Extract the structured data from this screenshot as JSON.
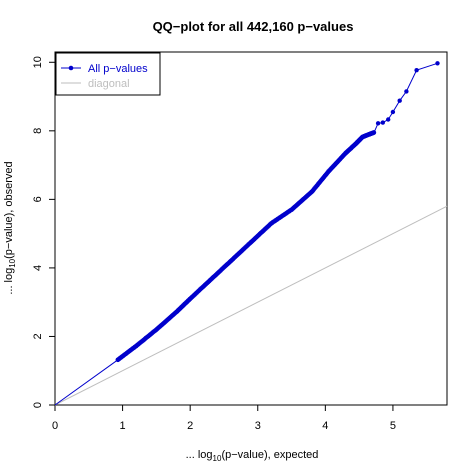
{
  "chart_data": {
    "type": "scatter",
    "title": "QQ−plot for all 442,160 p−values",
    "xlabel": {
      "prefix": "... log",
      "sub": "10",
      "suffix": "(p−value), expected"
    },
    "ylabel": {
      "prefix": "... log",
      "sub": "10",
      "suffix": "(p−value), observed"
    },
    "xlim": [
      0,
      5.8
    ],
    "ylim": [
      0,
      10.3
    ],
    "x_ticks": [
      0,
      1,
      2,
      3,
      4,
      5
    ],
    "y_ticks": [
      0,
      2,
      4,
      6,
      8,
      10
    ],
    "grid": false,
    "legend_position": "top-left",
    "legend": [
      {
        "label": "All p−values",
        "color": "#0000cc",
        "marker": "point-line"
      },
      {
        "label": "diagonal",
        "color": "#bebebe",
        "marker": "line"
      }
    ],
    "series": [
      {
        "name": "All p−values",
        "color": "#0000cc",
        "x": [
          0,
          0.93,
          1.2,
          1.5,
          1.8,
          2.0,
          2.3,
          2.6,
          2.9,
          3.2,
          3.5,
          3.8,
          4.05,
          4.3,
          4.45,
          4.55,
          4.65,
          4.72,
          4.78,
          4.85,
          4.93,
          5.0,
          5.1,
          5.2,
          5.35,
          5.66
        ],
        "y": [
          0,
          1.32,
          1.72,
          2.2,
          2.72,
          3.1,
          3.65,
          4.2,
          4.75,
          5.3,
          5.7,
          6.22,
          6.82,
          7.35,
          7.62,
          7.82,
          7.9,
          7.95,
          8.22,
          8.24,
          8.33,
          8.55,
          8.88,
          9.15,
          9.77,
          9.97
        ]
      },
      {
        "name": "diagonal",
        "color": "#bebebe",
        "x": [
          0,
          5.8
        ],
        "y": [
          0,
          5.8
        ]
      }
    ]
  }
}
